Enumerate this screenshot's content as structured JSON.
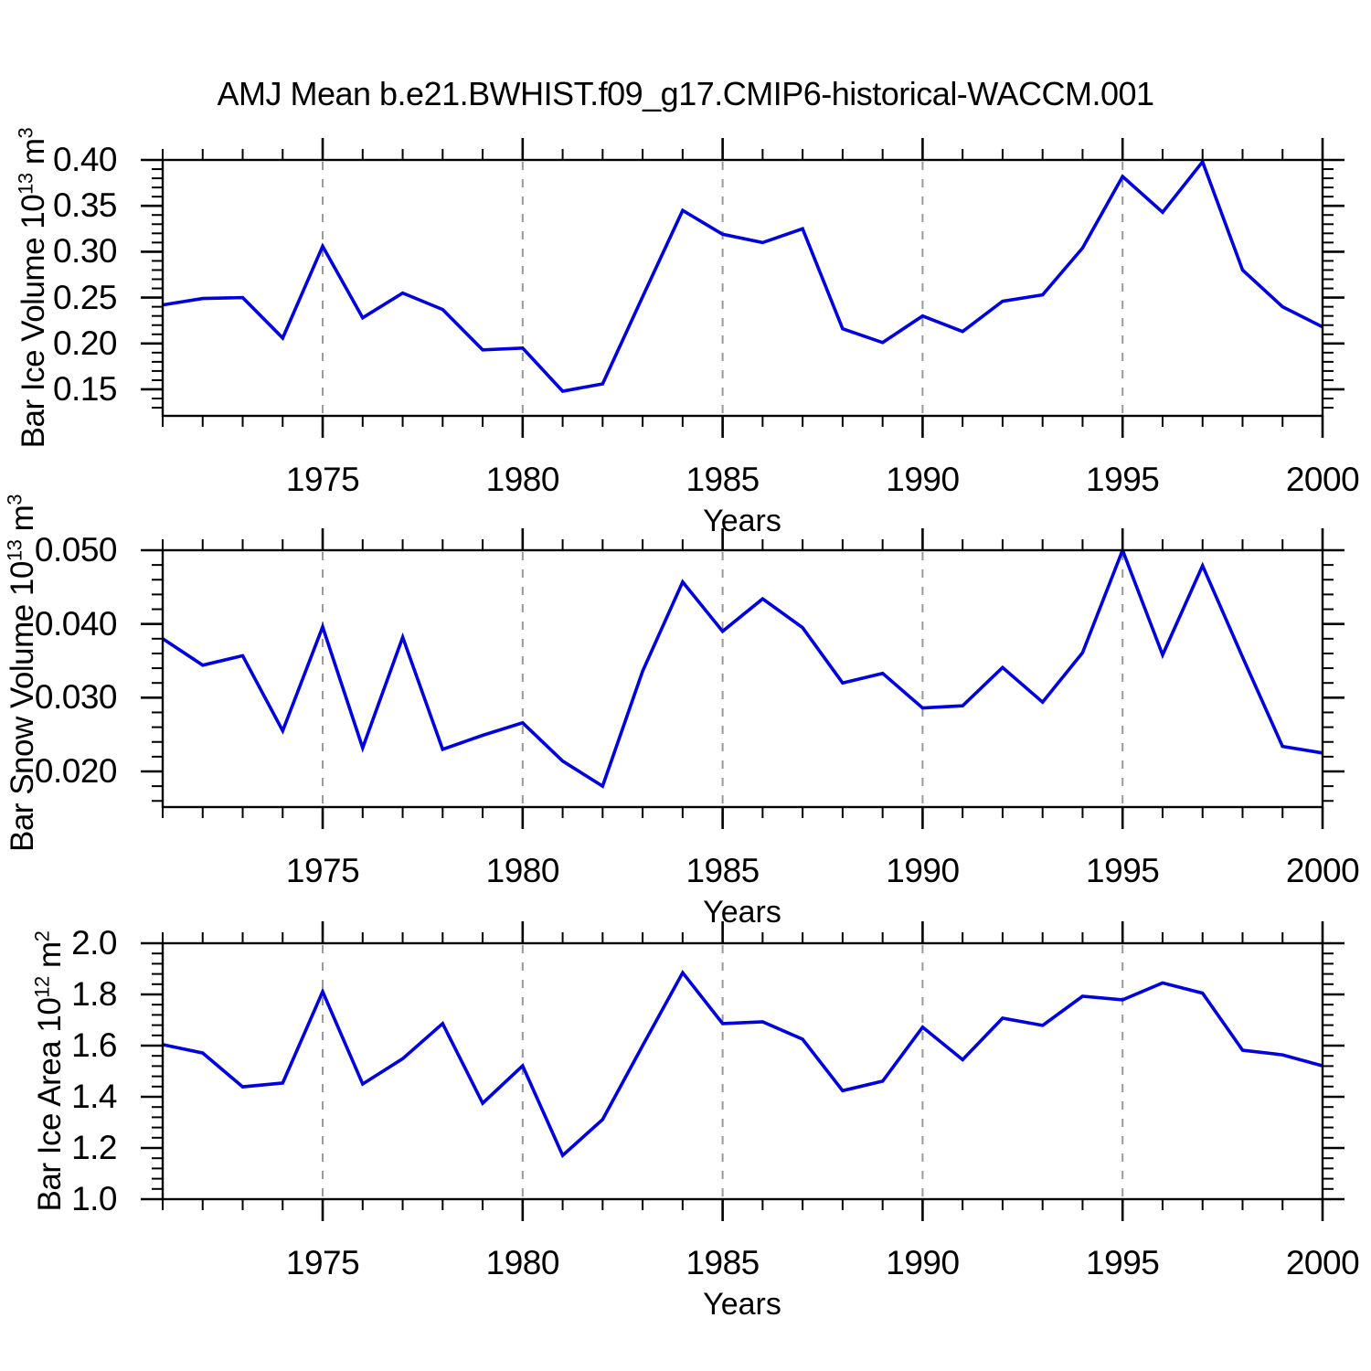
{
  "title": "AMJ Mean b.e21.BWHIST.f09_g17.CMIP6-historical-WACCM.001",
  "colors": {
    "line": "#0000E0",
    "grid": "#999999",
    "axis": "#000000",
    "text": "#000000",
    "background": "#FFFFFF"
  },
  "x_axis": {
    "label": "Years",
    "years": [
      1971,
      1972,
      1973,
      1974,
      1975,
      1976,
      1977,
      1978,
      1979,
      1980,
      1981,
      1982,
      1983,
      1984,
      1985,
      1986,
      1987,
      1988,
      1989,
      1990,
      1991,
      1992,
      1993,
      1994,
      1995,
      1996,
      1997,
      1998,
      1999,
      2000
    ],
    "major_tick_years": [
      1975,
      1980,
      1985,
      1990,
      1995,
      2000
    ],
    "tick_labels": [
      "1975",
      "1980",
      "1985",
      "1990",
      "1995",
      "2000"
    ],
    "grid_years": [
      1975,
      1980,
      1985,
      1990,
      1995
    ]
  },
  "chart_data": {
    "type": "line",
    "title": "AMJ Mean b.e21.BWHIST.f09_g17.CMIP6-historical-WACCM.001",
    "x": [
      1971,
      1972,
      1973,
      1974,
      1975,
      1976,
      1977,
      1978,
      1979,
      1980,
      1981,
      1982,
      1983,
      1984,
      1985,
      1986,
      1987,
      1988,
      1989,
      1990,
      1991,
      1992,
      1993,
      1994,
      1995,
      1996,
      1997,
      1998,
      1999,
      2000
    ],
    "xlabel": "Years",
    "grid": "vertical-dashed",
    "legend": "none",
    "series": [
      {
        "name": "Bar Ice Volume",
        "ylabel_base": "Bar Ice Volume 10",
        "ylabel_exp": "13",
        "ylabel_unit": " m",
        "ylabel_unit_exp": "3",
        "values": [
          0.242,
          0.249,
          0.25,
          0.206,
          0.306,
          0.228,
          0.255,
          0.237,
          0.193,
          0.195,
          0.148,
          0.156,
          0.251,
          0.345,
          0.319,
          0.31,
          0.325,
          0.216,
          0.201,
          0.23,
          0.213,
          0.246,
          0.253,
          0.304,
          0.382,
          0.343,
          0.398,
          0.28,
          0.24,
          0.218
        ],
        "ylim": [
          0.1211,
          0.4
        ],
        "y_major_ticks": [
          0.15,
          0.2,
          0.25,
          0.3,
          0.35,
          0.4
        ],
        "y_tick_labels": [
          "0.15",
          "0.20",
          "0.25",
          "0.30",
          "0.35",
          "0.40"
        ],
        "y_minor_step": 0.01
      },
      {
        "name": "Bar Snow Volume",
        "ylabel_base": "Bar Snow Volume 10",
        "ylabel_exp": "13",
        "ylabel_unit": " m",
        "ylabel_unit_exp": "3",
        "values": [
          0.038,
          0.0344,
          0.0357,
          0.0255,
          0.0396,
          0.0232,
          0.0382,
          0.023,
          0.0249,
          0.0266,
          0.0214,
          0.018,
          0.0336,
          0.0457,
          0.039,
          0.0434,
          0.0395,
          0.032,
          0.0333,
          0.0286,
          0.0289,
          0.0341,
          0.0294,
          0.0361,
          0.05,
          0.0358,
          0.0479,
          0.0355,
          0.0234,
          0.0225
        ],
        "ylim": [
          0.015166,
          0.05
        ],
        "y_major_ticks": [
          0.02,
          0.03,
          0.04,
          0.05
        ],
        "y_tick_labels": [
          "0.020",
          "0.030",
          "0.040",
          "0.050"
        ],
        "y_minor_step": 0.002
      },
      {
        "name": "Bar Ice Area",
        "ylabel_base": "Bar Ice Area 10",
        "ylabel_exp": "12",
        "ylabel_unit": " m",
        "ylabel_unit_exp": "2",
        "values": [
          1.604,
          1.571,
          1.439,
          1.454,
          1.811,
          1.45,
          1.549,
          1.686,
          1.375,
          1.521,
          1.171,
          1.311,
          1.6,
          1.885,
          1.686,
          1.693,
          1.625,
          1.424,
          1.461,
          1.672,
          1.545,
          1.707,
          1.679,
          1.793,
          1.779,
          1.845,
          1.805,
          1.582,
          1.564,
          1.521
        ],
        "ylim": [
          1.0,
          2.0
        ],
        "y_major_ticks": [
          1.0,
          1.2,
          1.4,
          1.6,
          1.8,
          2.0
        ],
        "y_tick_labels": [
          "1.0",
          "1.2",
          "1.4",
          "1.6",
          "1.8",
          "2.0"
        ],
        "y_minor_step": 0.04
      }
    ]
  }
}
